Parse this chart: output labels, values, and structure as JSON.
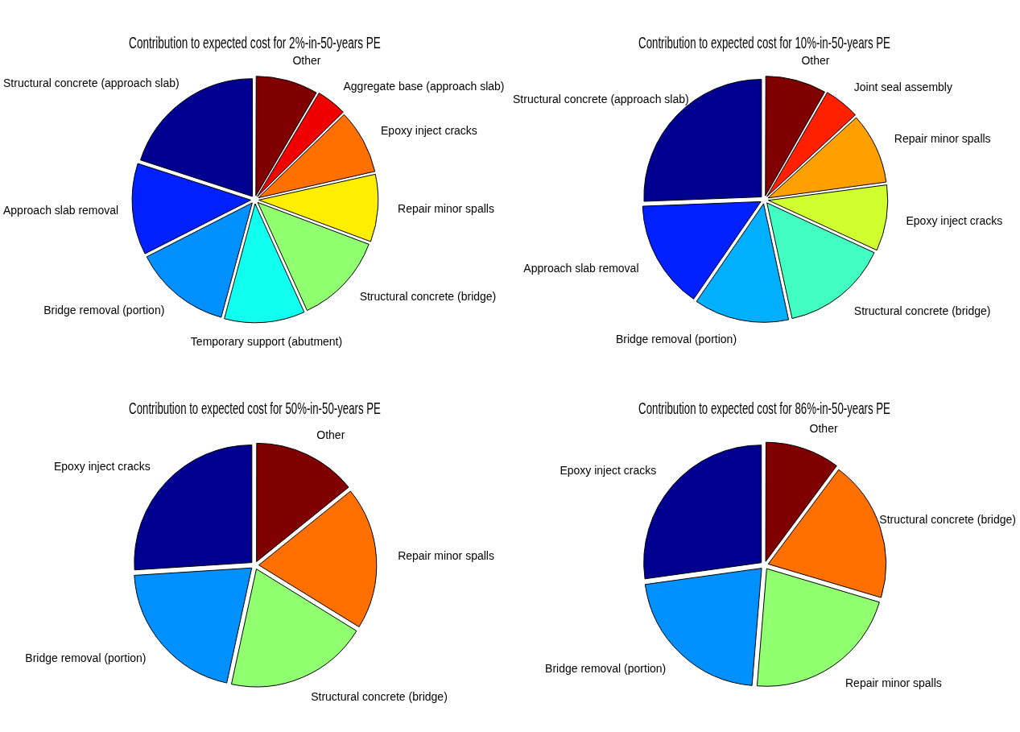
{
  "chart_data": [
    {
      "type": "pie",
      "title": "Contribution to expected cost for 2%-in-50-years PE",
      "legend": false,
      "categories": [
        "Other",
        "Aggregate base (approach slab)",
        "Epoxy inject cracks",
        "Repair minor spalls",
        "Structural concrete (bridge)",
        "Temporary support (abutment)",
        "Bridge removal (portion)",
        "Approach slab removal",
        "Structural concrete (approach slab)"
      ],
      "values": [
        8.5,
        4.2,
        8.8,
        9.2,
        12.5,
        11,
        13.3,
        12.5,
        20
      ],
      "colors": [
        "#800000",
        "#ef0000",
        "#ff7000",
        "#ffee00",
        "#90ff70",
        "#10ffef",
        "#0090ff",
        "#0020ff",
        "#000090"
      ]
    },
    {
      "type": "pie",
      "title": "Contribution to expected cost for 10%-in-50-years PE",
      "legend": false,
      "categories": [
        "Other",
        "Joint seal assembly",
        "Repair minor spalls",
        "Epoxy inject cracks",
        "Structural concrete (bridge)",
        "Bridge removal (portion)",
        "Approach slab removal",
        "Structural concrete (approach slab)"
      ],
      "values": [
        8.3,
        4.9,
        9.7,
        9,
        14.7,
        13,
        14.8,
        25.6
      ],
      "colors": [
        "#800000",
        "#ff2000",
        "#ffa000",
        "#d0ff30",
        "#40ffc0",
        "#00b0ff",
        "#0020ff",
        "#000090"
      ]
    },
    {
      "type": "pie",
      "title": "Contribution to expected cost for 50%-in-50-years PE",
      "legend": false,
      "categories": [
        "Other",
        "Repair minor spalls",
        "Structural concrete (bridge)",
        "Bridge removal (portion)",
        "Epoxy inject cracks"
      ],
      "values": [
        14.2,
        19.6,
        19.6,
        20.6,
        26
      ],
      "colors": [
        "#800000",
        "#ff7000",
        "#90ff70",
        "#0090ff",
        "#000090"
      ]
    },
    {
      "type": "pie",
      "title": "Contribution to expected cost for 86%-in-50-years PE",
      "legend": false,
      "categories": [
        "Other",
        "Structural concrete (bridge)",
        "Repair minor spalls",
        "Bridge removal (portion)",
        "Epoxy inject cracks"
      ],
      "values": [
        10.2,
        19.4,
        21.7,
        21.5,
        27.2
      ],
      "colors": [
        "#800000",
        "#ff7000",
        "#90ff70",
        "#0090ff",
        "#000090"
      ]
    }
  ]
}
